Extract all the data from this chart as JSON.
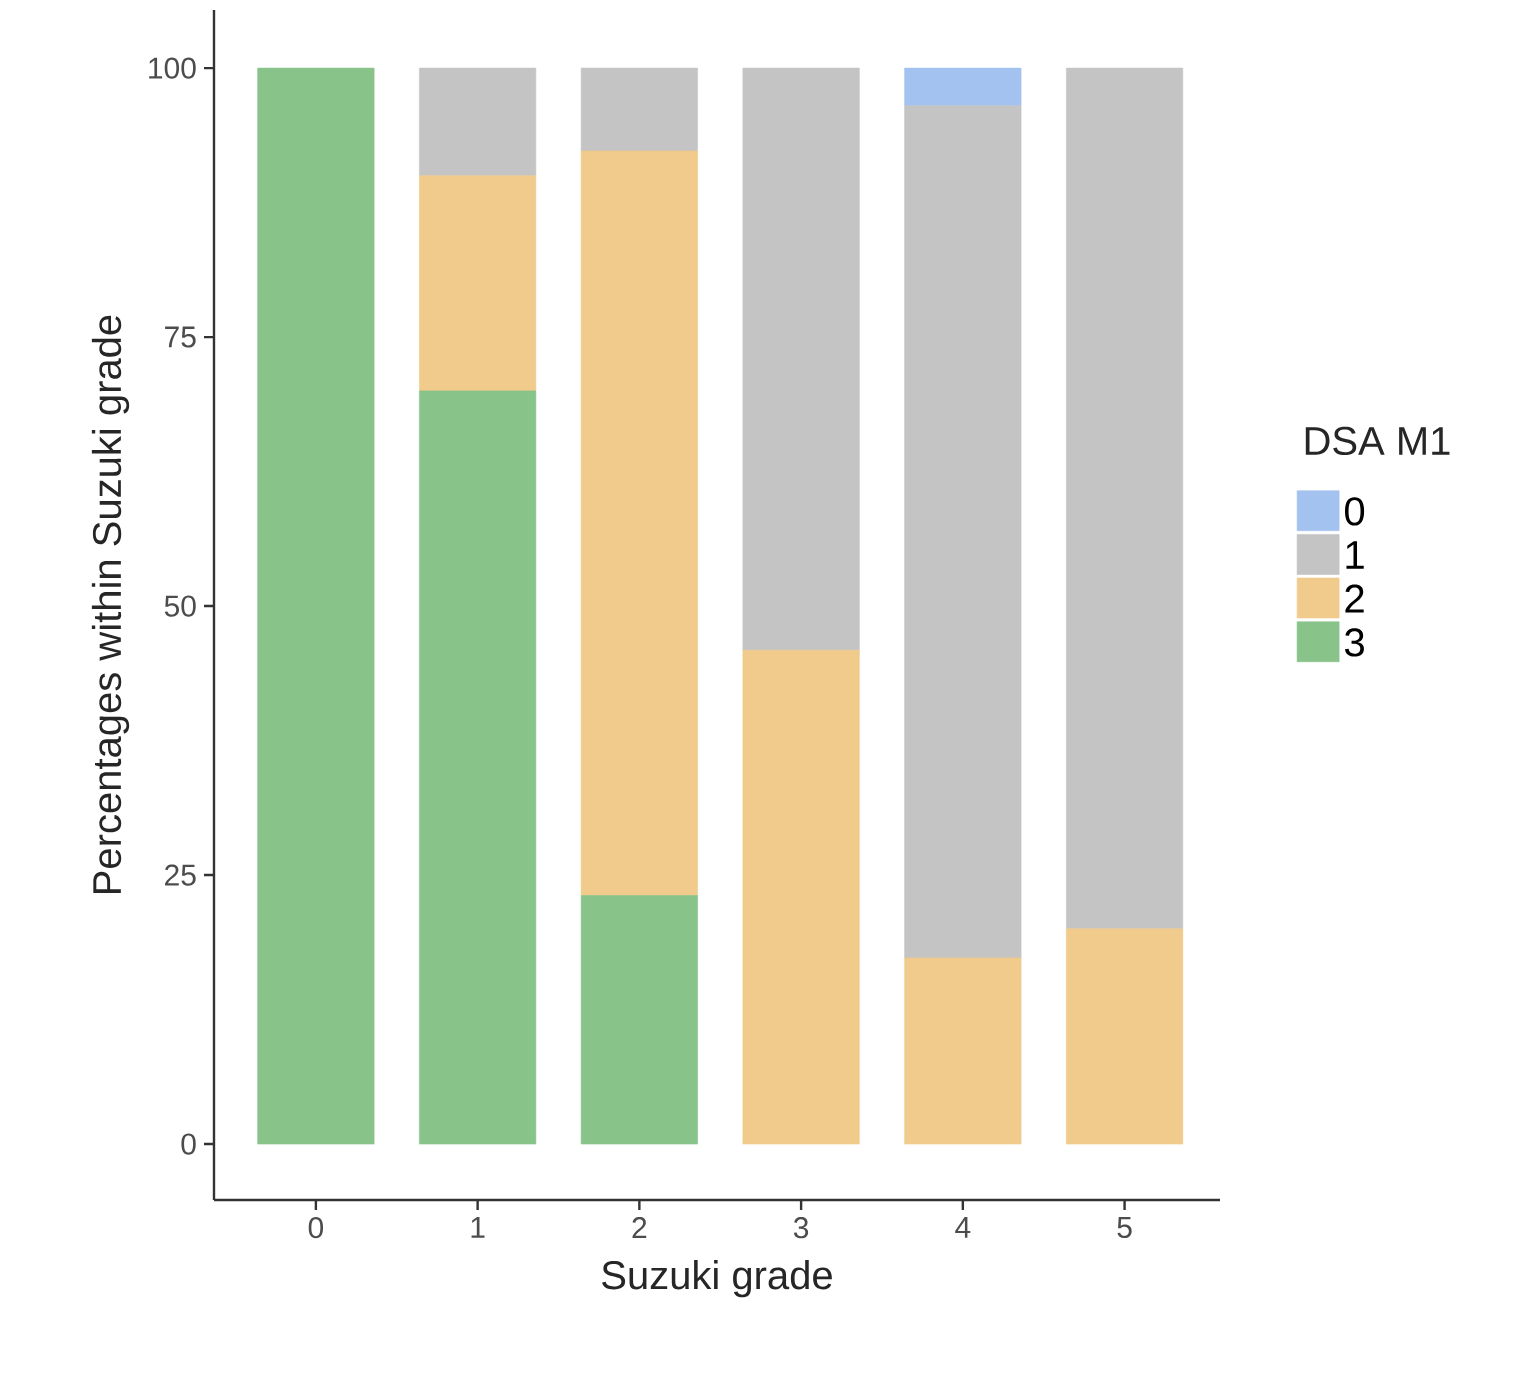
{
  "chart_data": {
    "type": "bar",
    "stacked": true,
    "xlabel": "Suzuki grade",
    "ylabel": "Percentages within Suzuki grade",
    "legend_title": "DSA M1",
    "legend": "right",
    "categories": [
      "0",
      "1",
      "2",
      "3",
      "4",
      "5"
    ],
    "series": [
      {
        "name": "3",
        "color": "#88c38a",
        "values": [
          100,
          70,
          23.1,
          0,
          0,
          0
        ]
      },
      {
        "name": "2",
        "color": "#f0cb8c",
        "values": [
          0,
          20,
          69.2,
          45.9,
          17.3,
          20
        ]
      },
      {
        "name": "1",
        "color": "#c4c4c4",
        "values": [
          0,
          10,
          7.7,
          54.1,
          79.2,
          80
        ]
      },
      {
        "name": "0",
        "color": "#a4c2f0",
        "values": [
          0,
          0,
          0,
          0,
          3.5,
          0
        ]
      }
    ],
    "ylim": [
      -5.2,
      105.4
    ],
    "yticks": [
      0,
      25,
      50,
      75,
      100
    ],
    "grid": false
  }
}
